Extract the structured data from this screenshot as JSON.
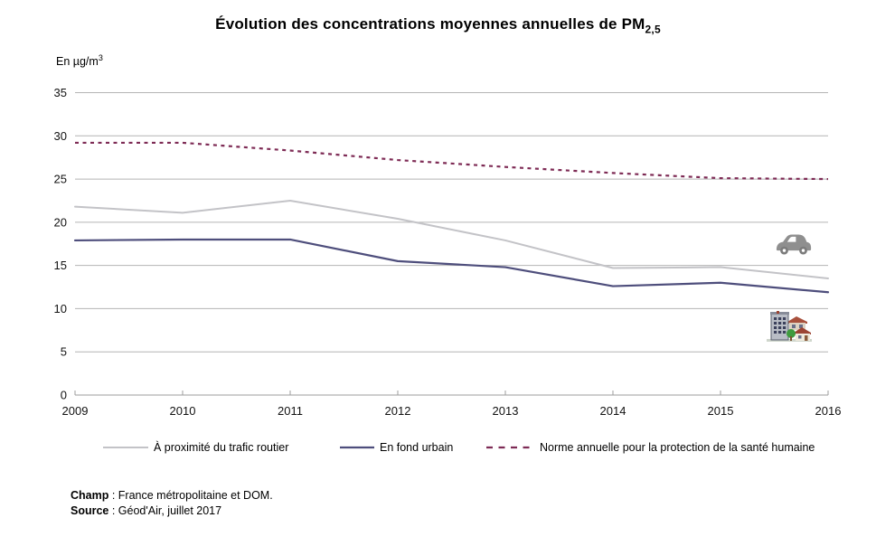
{
  "title": {
    "prefix": "Évolution des concentrations moyennes annuelles de PM",
    "subscript": "2,5"
  },
  "y_axis": {
    "unit_prefix": "En µg/m",
    "unit_exponent": "3"
  },
  "chart_data": {
    "type": "line",
    "x": [
      2009,
      2010,
      2011,
      2012,
      2013,
      2014,
      2015,
      2016
    ],
    "ylim": [
      0,
      35
    ],
    "y_tick_step": 5,
    "grid": true,
    "legend_position": "bottom",
    "series": [
      {
        "name": "À proximité du trafic routier",
        "color": "#c3c3c7",
        "style": "solid",
        "values": [
          21.8,
          21.1,
          22.5,
          20.4,
          17.9,
          14.7,
          14.8,
          13.5
        ]
      },
      {
        "name": "En fond urbain",
        "color": "#4e4e7c",
        "style": "solid",
        "values": [
          17.9,
          18.0,
          18.0,
          15.5,
          14.8,
          12.6,
          13.0,
          11.9
        ]
      },
      {
        "name": "Norme annuelle pour la protection de la santé humaine",
        "color": "#7e2b55",
        "style": "dashed",
        "values": [
          29.2,
          29.2,
          28.3,
          27.2,
          26.4,
          25.7,
          25.1,
          25.0
        ]
      }
    ]
  },
  "icons": [
    {
      "name": "car-icon",
      "color": "#8f8f8f"
    },
    {
      "name": "buildings-icon",
      "color": "multicolor"
    }
  ],
  "footer": {
    "champ_label": "Champ",
    "champ_value": " : France métropolitaine et DOM.",
    "source_label": "Source",
    "source_value": " : Géod'Air, juillet 2017"
  }
}
